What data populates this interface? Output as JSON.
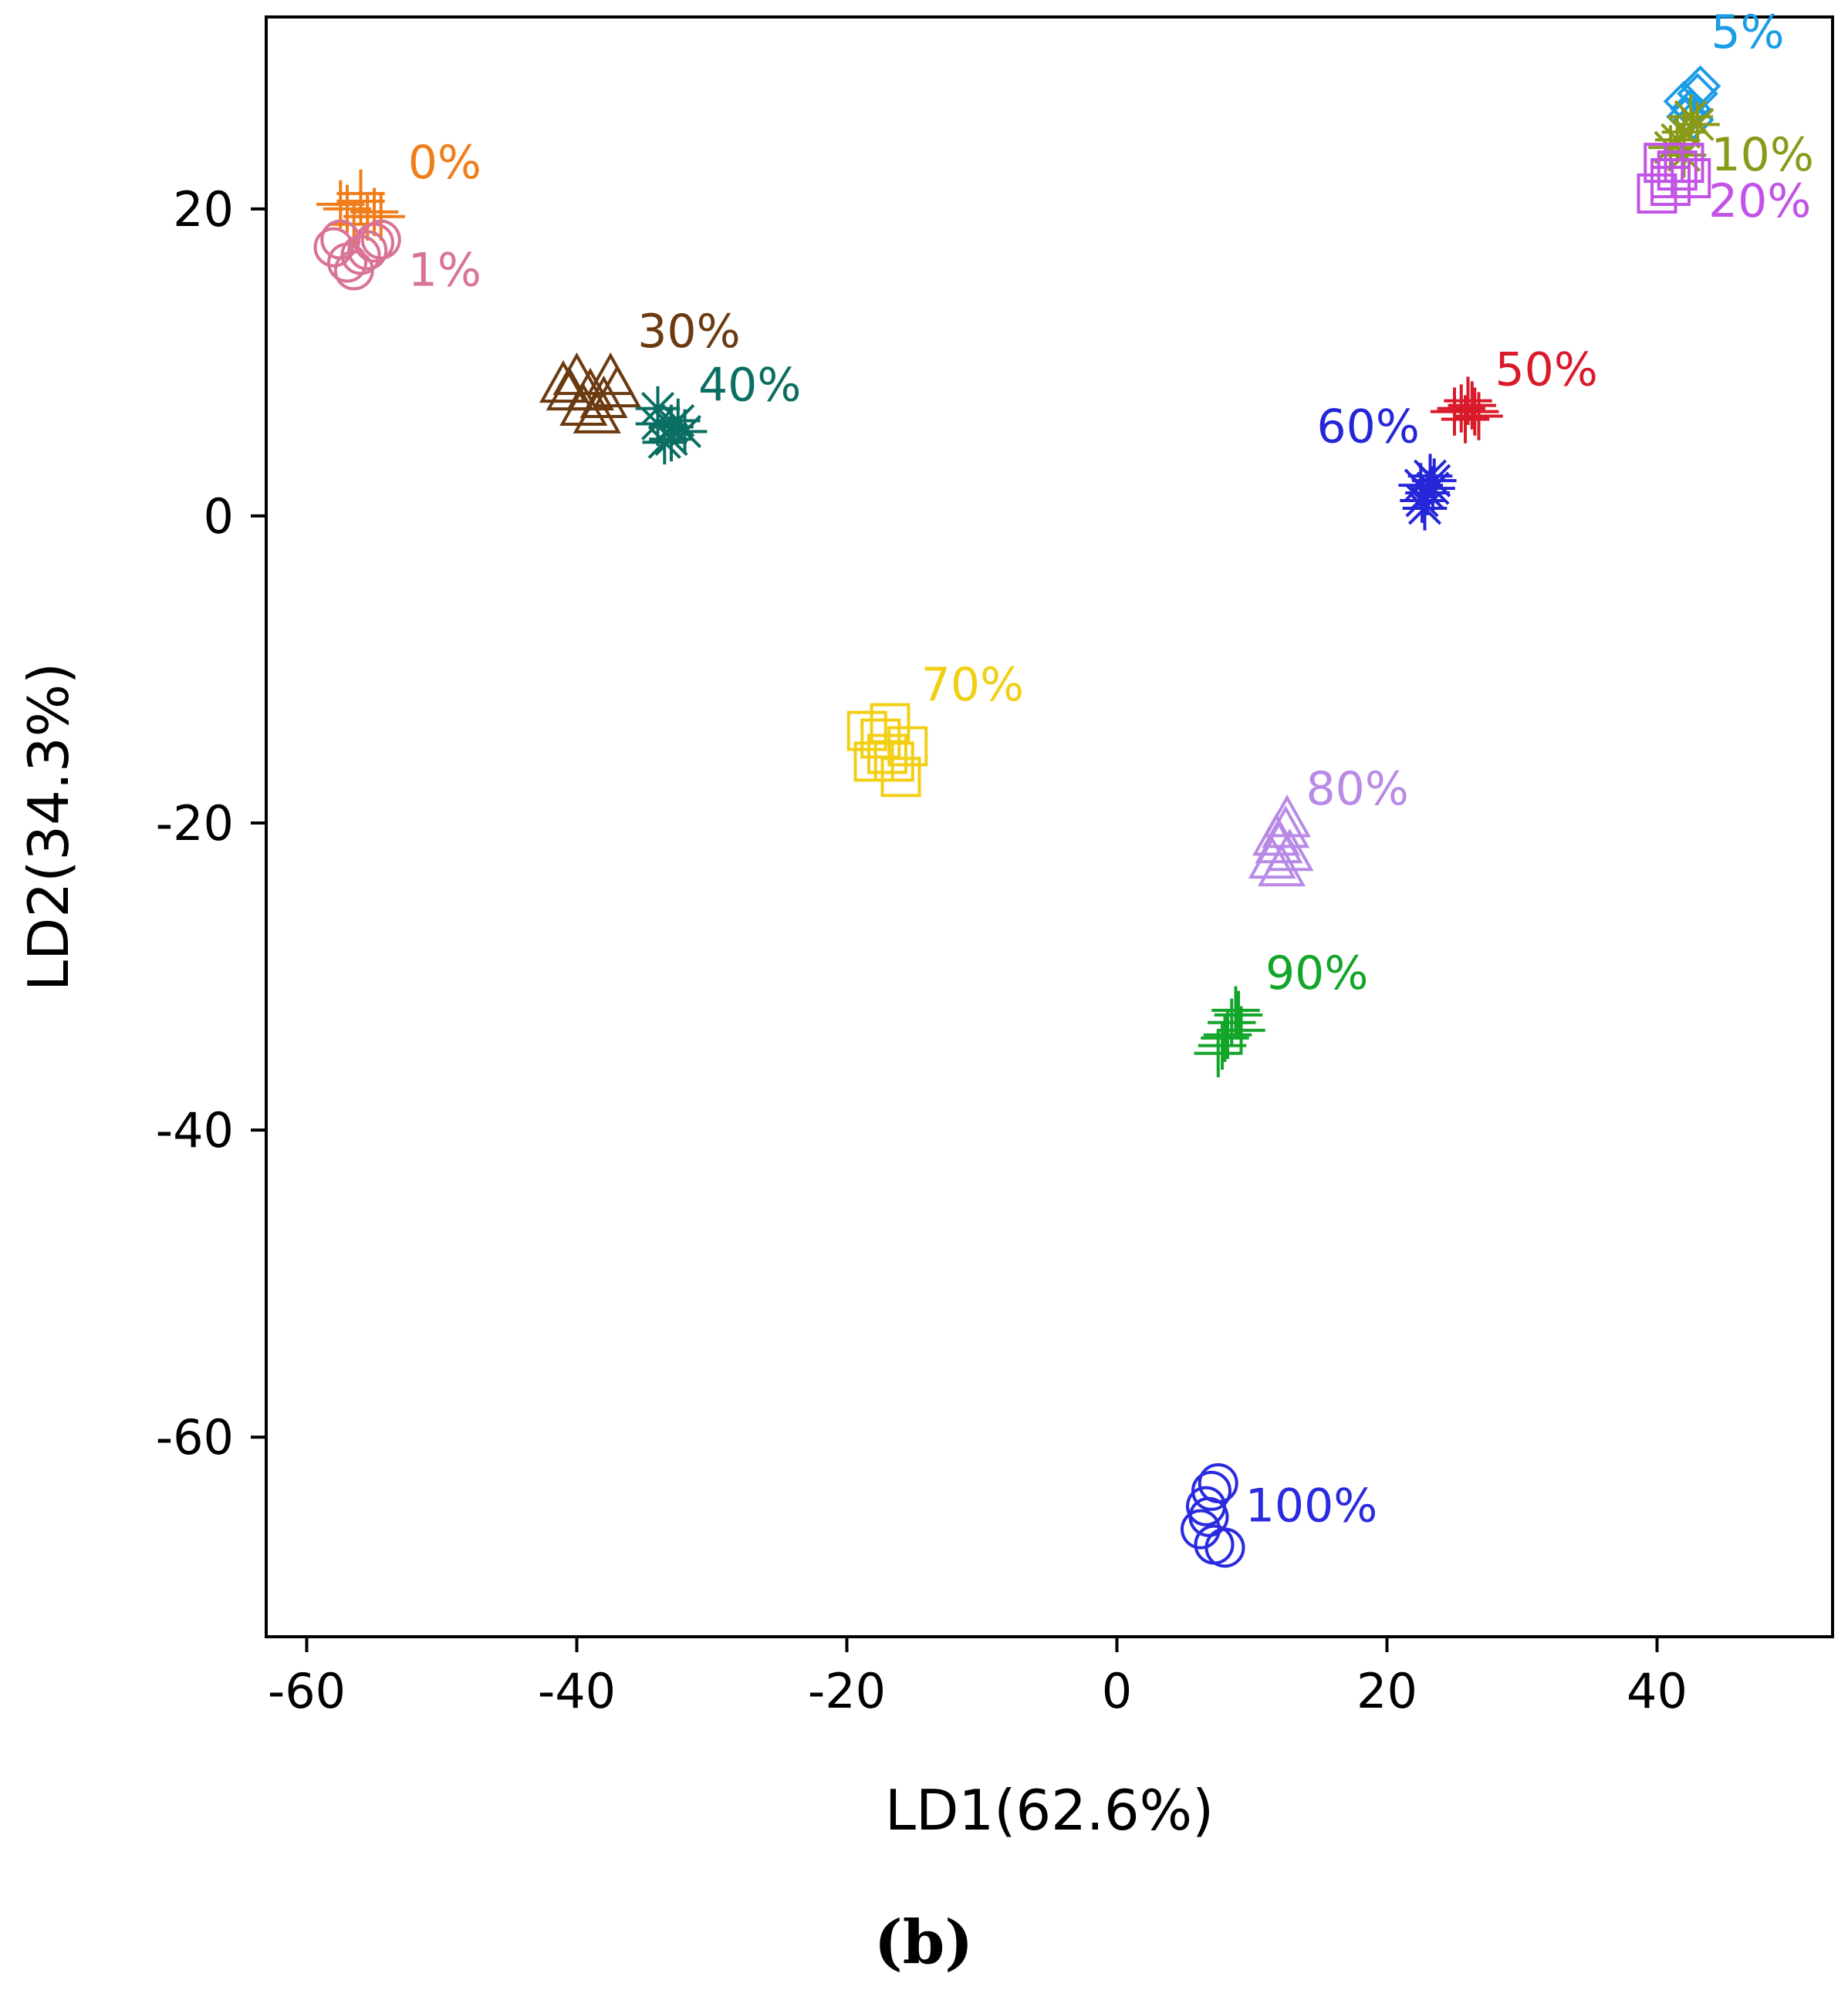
{
  "chart_data": {
    "type": "scatter",
    "xlabel": "LD1(62.6%)",
    "ylabel": "LD2(34.3%)",
    "caption": "(b)",
    "xlim": [
      -63,
      53
    ],
    "ylim": [
      -73,
      32.5
    ],
    "xticks": [
      -60,
      -40,
      -20,
      0,
      20,
      40
    ],
    "yticks": [
      -60,
      -40,
      -20,
      0,
      20
    ],
    "grid": false,
    "legend": "none",
    "series": [
      {
        "name": "0%",
        "marker": "plus",
        "color": "#f07d1a",
        "label_at": [
          -52.5,
          22
        ],
        "points": [
          [
            -57,
            20
          ],
          [
            -56,
            21
          ],
          [
            -55.5,
            19.5
          ],
          [
            -56.5,
            19
          ],
          [
            -55,
            19.8
          ],
          [
            -54.5,
            19.5
          ],
          [
            -56,
            20.5
          ],
          [
            -57.5,
            20.3
          ]
        ]
      },
      {
        "name": "1%",
        "marker": "circle",
        "color": "#d97394",
        "label_at": [
          -52.5,
          15
        ],
        "points": [
          [
            -58,
            17.5
          ],
          [
            -57,
            16.5
          ],
          [
            -56,
            17
          ],
          [
            -55,
            17.8
          ],
          [
            -56.5,
            16
          ],
          [
            -57.5,
            18
          ],
          [
            -55.5,
            17.3
          ],
          [
            -54.5,
            18
          ]
        ]
      },
      {
        "name": "30%",
        "marker": "triangle",
        "color": "#6b3a10",
        "label_at": [
          -35.5,
          11
        ],
        "points": [
          [
            -41,
            8.5
          ],
          [
            -40,
            9
          ],
          [
            -39,
            8
          ],
          [
            -38,
            7.5
          ],
          [
            -37,
            8.2
          ],
          [
            -39.5,
            7
          ],
          [
            -38.5,
            6.5
          ],
          [
            -40.5,
            8
          ],
          [
            -37.5,
            9
          ]
        ]
      },
      {
        "name": "40%",
        "marker": "asterisk",
        "color": "#0a6e63",
        "label_at": [
          -31,
          7.5
        ],
        "points": [
          [
            -34,
            6
          ],
          [
            -33,
            5
          ],
          [
            -32,
            5.5
          ],
          [
            -33.5,
            4.8
          ],
          [
            -32.5,
            6.2
          ],
          [
            -34,
            7
          ],
          [
            -33,
            5.8
          ]
        ]
      },
      {
        "name": "5%",
        "marker": "diamond",
        "color": "#1a9ce6",
        "label_at": [
          44,
          30.5
        ],
        "points": [
          [
            42.5,
            26.5
          ],
          [
            43,
            27.5
          ],
          [
            42,
            27
          ],
          [
            42.7,
            25.8
          ],
          [
            43.2,
            28
          ],
          [
            42.2,
            26
          ]
        ]
      },
      {
        "name": "10%",
        "marker": "asterisk",
        "color": "#8a9a18",
        "label_at": [
          44,
          22.5
        ],
        "points": [
          [
            41,
            24
          ],
          [
            42,
            25
          ],
          [
            42.5,
            26
          ],
          [
            41.5,
            24.5
          ],
          [
            42,
            23.5
          ],
          [
            43,
            25.5
          ]
        ]
      },
      {
        "name": "20%",
        "marker": "square",
        "color": "#c253e6",
        "label_at": [
          43.8,
          19.5
        ],
        "points": [
          [
            40,
            21
          ],
          [
            41,
            22
          ],
          [
            42,
            23
          ],
          [
            40.5,
            23
          ],
          [
            41.5,
            22.5
          ],
          [
            42.5,
            22
          ],
          [
            41,
            21.5
          ]
        ]
      },
      {
        "name": "50%",
        "marker": "plus",
        "color": "#d91a2a",
        "label_at": [
          28,
          8.5
        ],
        "points": [
          [
            25.5,
            7
          ],
          [
            26,
            7.5
          ],
          [
            26.5,
            6.8
          ],
          [
            25.8,
            6.3
          ],
          [
            26.3,
            7.2
          ],
          [
            25,
            6.8
          ],
          [
            26.8,
            6.5
          ]
        ]
      },
      {
        "name": "60%",
        "marker": "asterisk",
        "color": "#2626d9",
        "label_at": [
          14.8,
          4.8
        ],
        "points": [
          [
            22.5,
            2
          ],
          [
            23,
            1.5
          ],
          [
            23.5,
            2.3
          ],
          [
            22.8,
            0.5
          ],
          [
            23.2,
            2.6
          ],
          [
            22.6,
            1
          ],
          [
            23.4,
            1.8
          ]
        ]
      },
      {
        "name": "70%",
        "marker": "square",
        "color": "#f2cf12",
        "label_at": [
          -14.5,
          -12
        ],
        "points": [
          [
            -18.5,
            -14
          ],
          [
            -17.5,
            -14.5
          ],
          [
            -17,
            -15.5
          ],
          [
            -16.5,
            -16
          ],
          [
            -16,
            -17
          ],
          [
            -15.5,
            -15
          ],
          [
            -18,
            -16
          ],
          [
            -16.8,
            -13.5
          ]
        ]
      },
      {
        "name": "80%",
        "marker": "triangle",
        "color": "#b88ae6",
        "label_at": [
          14,
          -18.8
        ],
        "points": [
          [
            11.5,
            -22.5
          ],
          [
            12,
            -21.5
          ],
          [
            12.5,
            -20.5
          ],
          [
            12.8,
            -22
          ],
          [
            12.2,
            -23
          ],
          [
            12.6,
            -19.8
          ],
          [
            11.8,
            -21
          ]
        ]
      },
      {
        "name": "90%",
        "marker": "plus",
        "color": "#13a52a",
        "label_at": [
          11,
          -30.8
        ],
        "points": [
          [
            7.5,
            -35
          ],
          [
            8,
            -34
          ],
          [
            8.5,
            -33
          ],
          [
            9,
            -32.5
          ],
          [
            8.2,
            -33.8
          ],
          [
            9.2,
            -33.5
          ],
          [
            7.8,
            -34.5
          ],
          [
            8.8,
            -32.2
          ]
        ]
      },
      {
        "name": "100%",
        "marker": "circle",
        "color": "#2a2adf",
        "label_at": [
          9.5,
          -65.5
        ],
        "points": [
          [
            7,
            -63.5
          ],
          [
            7.5,
            -63
          ],
          [
            6.8,
            -65.2
          ],
          [
            6.2,
            -66
          ],
          [
            7.2,
            -67
          ],
          [
            8,
            -67.2
          ],
          [
            6.6,
            -64.5
          ]
        ]
      }
    ]
  }
}
